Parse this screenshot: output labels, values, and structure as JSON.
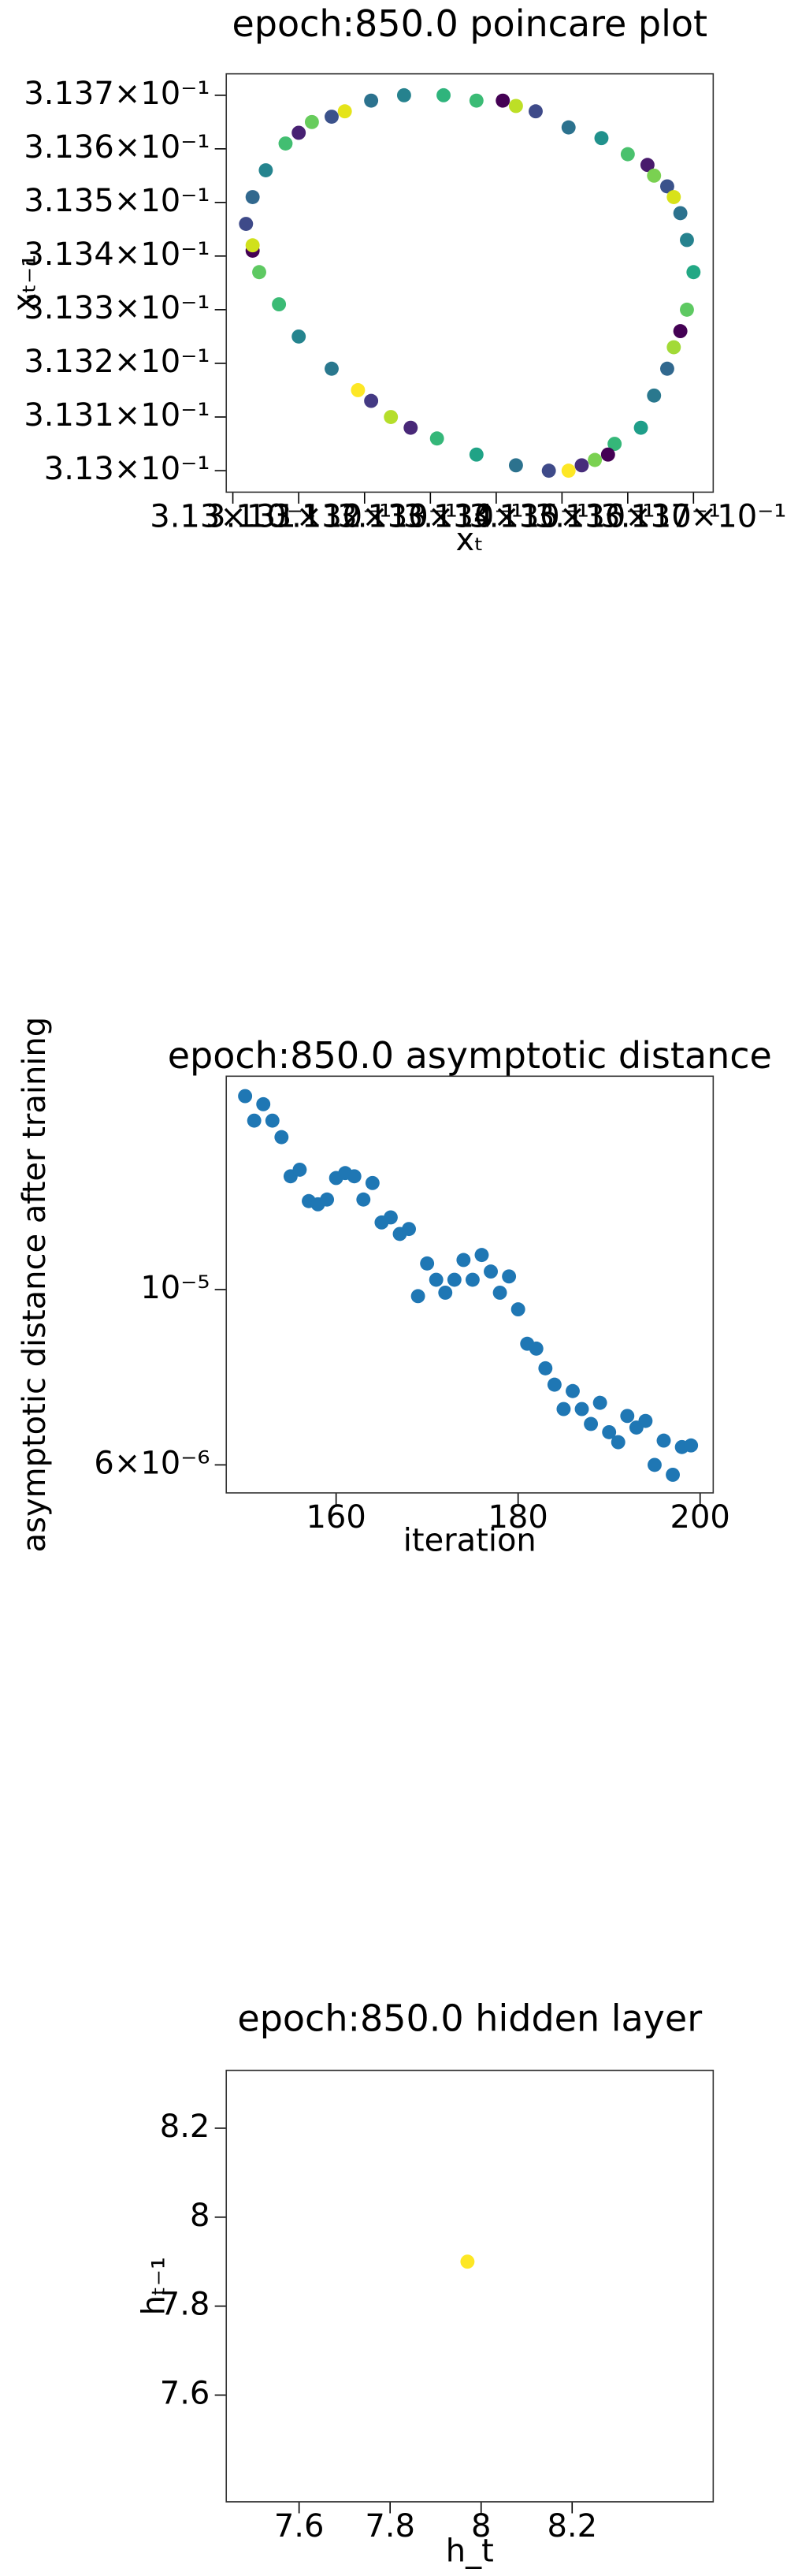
{
  "chart_data": [
    {
      "type": "scatter",
      "title": "epoch:850.0 poincare plot",
      "xlabel": "xₜ",
      "ylabel": "xₜ₋₁",
      "xscale": "log",
      "yscale": "log",
      "x": [
        0.31326,
        0.31332,
        0.31337,
        0.31341,
        0.31343,
        0.31346,
        0.31351,
        0.31356,
        0.3136,
        0.31363,
        0.31364,
        0.31366,
        0.31367,
        0.31368,
        0.31369,
        0.3137,
        0.31369,
        0.31368,
        0.31367,
        0.31366,
        0.31364,
        0.31362,
        0.31358,
        0.31357,
        0.31355,
        0.31353,
        0.31351,
        0.31348,
        0.31343,
        0.31337,
        0.31331,
        0.31327,
        0.31324,
        0.31321,
        0.31319,
        0.31315,
        0.3131,
        0.31307,
        0.31304,
        0.31303,
        0.31303,
        0.31302,
        0.31303,
        0.31305,
        0.31308,
        0.3131,
        0.31312,
        0.31315,
        0.31317,
        0.31321
      ],
      "y": [
        0.3137,
        0.3137,
        0.31369,
        0.31369,
        0.31368,
        0.31367,
        0.31364,
        0.31362,
        0.31359,
        0.31357,
        0.31355,
        0.31353,
        0.31351,
        0.31348,
        0.31343,
        0.31337,
        0.3133,
        0.31326,
        0.31323,
        0.31319,
        0.31314,
        0.31308,
        0.31305,
        0.31303,
        0.31302,
        0.31301,
        0.313,
        0.313,
        0.31301,
        0.31303,
        0.31306,
        0.31308,
        0.3131,
        0.31313,
        0.31315,
        0.31319,
        0.31325,
        0.31331,
        0.31337,
        0.31341,
        0.31342,
        0.31346,
        0.31351,
        0.31356,
        0.31361,
        0.31363,
        0.31365,
        0.31366,
        0.31367,
        0.31369
      ],
      "colors": [
        "#26828e",
        "#2fb47c",
        "#3bbb75",
        "#440154",
        "#bddf26",
        "#3e4a89",
        "#2c728e",
        "#21918c",
        "#4ac16d",
        "#481a6c",
        "#7ad151",
        "#3b528b",
        "#d8e219",
        "#2c728e",
        "#26828e",
        "#22a884",
        "#5ec962",
        "#440154",
        "#a2da37",
        "#31688e",
        "#2a788e",
        "#1f9e89",
        "#35b779",
        "#440154",
        "#7ad151",
        "#472d7b",
        "#fde725",
        "#3e4a89",
        "#2c728e",
        "#20a386",
        "#35b779",
        "#482878",
        "#b5de2b",
        "#443a83",
        "#fde725",
        "#2a788e",
        "#25848e",
        "#3bbb75",
        "#5ec962",
        "#440154",
        "#d0e11c",
        "#3e4a89",
        "#31688e",
        "#25848e",
        "#42be71",
        "#482173",
        "#67cc5c",
        "#3b528b",
        "#e5e419",
        "#2c728e"
      ],
      "xlim": [
        0.31299,
        0.31373
      ],
      "ylim": [
        0.31296,
        0.31374
      ],
      "xticks": [
        {
          "value": 0.313,
          "label": "3.13×10⁻¹"
        },
        {
          "value": 0.3131,
          "label": "3.131×10⁻¹"
        },
        {
          "value": 0.3132,
          "label": "3.132×10⁻¹"
        },
        {
          "value": 0.3133,
          "label": "3.133×10⁻¹"
        },
        {
          "value": 0.3134,
          "label": "3.134×10⁻¹"
        },
        {
          "value": 0.3135,
          "label": "3.135×10⁻¹"
        },
        {
          "value": 0.3136,
          "label": "3.136×10⁻¹"
        },
        {
          "value": 0.3137,
          "label": "3.137×10⁻¹"
        }
      ],
      "yticks": [
        {
          "value": 0.313,
          "label": "3.13×10⁻¹"
        },
        {
          "value": 0.3131,
          "label": "3.131×10⁻¹"
        },
        {
          "value": 0.3132,
          "label": "3.132×10⁻¹"
        },
        {
          "value": 0.3133,
          "label": "3.133×10⁻¹"
        },
        {
          "value": 0.3134,
          "label": "3.134×10⁻¹"
        },
        {
          "value": 0.3135,
          "label": "3.135×10⁻¹"
        },
        {
          "value": 0.3136,
          "label": "3.136×10⁻¹"
        },
        {
          "value": 0.3137,
          "label": "3.137×10⁻¹"
        }
      ]
    },
    {
      "type": "scatter",
      "title": "epoch:850.0 asymptotic distance",
      "xlabel": "iteration",
      "ylabel": "asymptotic distance after training",
      "xscale": "linear",
      "yscale": "log",
      "color": "#1f77b4",
      "x": [
        150,
        151,
        152,
        153,
        154,
        155,
        156,
        157,
        158,
        159,
        160,
        161,
        162,
        163,
        164,
        165,
        166,
        167,
        168,
        169,
        170,
        171,
        172,
        173,
        174,
        175,
        176,
        177,
        178,
        179,
        180,
        181,
        182,
        183,
        184,
        185,
        186,
        187,
        188,
        189,
        190,
        191,
        192,
        193,
        194,
        195,
        196,
        197,
        198,
        199
      ],
      "y": [
        1.757e-05,
        1.636e-05,
        1.716e-05,
        1.636e-05,
        1.559e-05,
        1.391e-05,
        1.418e-05,
        1.294e-05,
        1.282e-05,
        1.3e-05,
        1.384e-05,
        1.404e-05,
        1.391e-05,
        1.3e-05,
        1.364e-05,
        1.216e-05,
        1.234e-05,
        1.176e-05,
        1.193e-05,
        9.81e-06,
        1.079e-05,
        1.029e-05,
        9.91e-06,
        1.029e-05,
        1.09e-05,
        1.029e-05,
        1.106e-05,
        1.054e-05,
        9.91e-06,
        1.039e-05,
        9.44e-06,
        8.54e-06,
        8.42e-06,
        7.95e-06,
        7.58e-06,
        7.06e-06,
        7.44e-06,
        7.06e-06,
        6.76e-06,
        7.19e-06,
        6.6e-06,
        6.41e-06,
        6.92e-06,
        6.69e-06,
        6.82e-06,
        6e-06,
        6.44e-06,
        5.83e-06,
        6.32e-06,
        6.35e-06
      ],
      "xlim": [
        147.93,
        201.44
      ],
      "ylim": [
        5.53e-06,
        1.862e-05
      ],
      "xticks": [
        160,
        180,
        200
      ],
      "yticks": [
        {
          "value": 1e-05,
          "label": "10⁻⁵"
        },
        {
          "value": 6e-06,
          "label": "6×10⁻⁶"
        }
      ]
    },
    {
      "type": "scatter",
      "title": "epoch:850.0 hidden layer",
      "xlabel": "h_t",
      "ylabel": "hₜ₋₁",
      "xscale": "linear",
      "yscale": "linear",
      "x": [
        7.97
      ],
      "y": [
        7.9
      ],
      "colors": [
        "#fde725"
      ],
      "xlim": [
        7.44,
        8.51
      ],
      "ylim": [
        7.36,
        8.33
      ],
      "xticks": [
        7.6,
        7.8,
        8.0,
        8.2
      ],
      "yticks": [
        7.6,
        7.8,
        8.0,
        8.2
      ]
    }
  ]
}
